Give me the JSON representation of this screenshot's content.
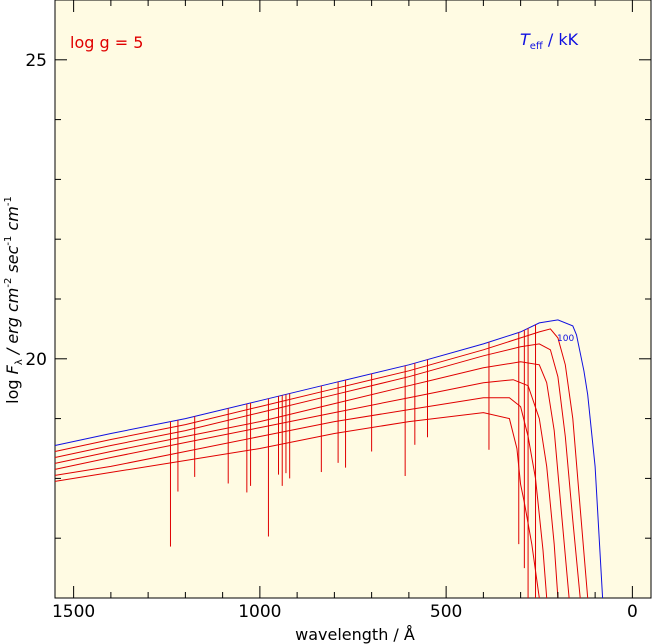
{
  "chart_data": {
    "type": "line",
    "title": "",
    "xlabel": "wavelength / Å",
    "ylabel_parts": [
      "log ",
      "F",
      "λ",
      " / erg cm",
      "-2",
      " sec",
      "-1",
      " cm",
      "-1"
    ],
    "xlim": [
      1550,
      -50
    ],
    "ylim": [
      16,
      26
    ],
    "x_ticks": [
      1500,
      1000,
      500,
      0
    ],
    "y_ticks": [
      20,
      25
    ],
    "grid": false,
    "annotations": {
      "gravity": "log g = 5",
      "teff_main": "T",
      "teff_sub": "eff",
      "teff_unit": " / kK",
      "curve_label": "100"
    },
    "series": [
      {
        "color": "#1010e0",
        "x": [
          1550,
          1400,
          1200,
          1000,
          800,
          600,
          400,
          300,
          250,
          200,
          160,
          150,
          140,
          130,
          120,
          100,
          80
        ],
        "y": [
          18.55,
          18.75,
          19.0,
          19.3,
          19.6,
          19.9,
          20.25,
          20.45,
          20.6,
          20.65,
          20.55,
          20.4,
          20.1,
          19.8,
          19.4,
          18.2,
          16.0
        ]
      },
      {
        "color": "#e00000",
        "x": [
          1550,
          1400,
          1200,
          1000,
          800,
          600,
          400,
          300,
          250,
          220,
          200,
          180,
          160,
          140,
          120
        ],
        "y": [
          18.45,
          18.65,
          18.9,
          19.2,
          19.5,
          19.8,
          20.15,
          20.35,
          20.45,
          20.5,
          20.35,
          19.9,
          19.0,
          17.5,
          16.0
        ]
      },
      {
        "color": "#e00000",
        "x": [
          1550,
          1400,
          1200,
          1000,
          800,
          600,
          400,
          300,
          250,
          220,
          200,
          180,
          160,
          140
        ],
        "y": [
          18.35,
          18.55,
          18.8,
          19.1,
          19.4,
          19.7,
          20.05,
          20.2,
          20.25,
          20.15,
          19.7,
          18.7,
          17.3,
          16.0
        ]
      },
      {
        "color": "#e00000",
        "x": [
          1550,
          1400,
          1200,
          1000,
          800,
          600,
          400,
          300,
          250,
          230,
          210,
          190,
          170
        ],
        "y": [
          18.25,
          18.45,
          18.7,
          18.95,
          19.25,
          19.55,
          19.85,
          19.95,
          19.9,
          19.6,
          18.8,
          17.4,
          16.0
        ]
      },
      {
        "color": "#e00000",
        "x": [
          1550,
          1400,
          1200,
          1000,
          800,
          600,
          400,
          320,
          280,
          250,
          230,
          210,
          200
        ],
        "y": [
          18.15,
          18.35,
          18.6,
          18.85,
          19.1,
          19.35,
          19.6,
          19.65,
          19.55,
          19.0,
          18.2,
          16.9,
          16.0
        ]
      },
      {
        "color": "#e00000",
        "x": [
          1550,
          1400,
          1200,
          1000,
          800,
          600,
          400,
          330,
          300,
          280,
          260,
          240,
          230
        ],
        "y": [
          18.05,
          18.2,
          18.45,
          18.7,
          18.95,
          19.15,
          19.35,
          19.35,
          19.2,
          18.7,
          18.0,
          16.8,
          16.0
        ]
      },
      {
        "color": "#e00000",
        "x": [
          1550,
          1400,
          1200,
          1000,
          800,
          600,
          400,
          330,
          310,
          300,
          290,
          270,
          250
        ],
        "y": [
          17.95,
          18.1,
          18.3,
          18.5,
          18.75,
          18.95,
          19.1,
          19.0,
          18.5,
          17.9,
          17.6,
          16.9,
          16.0
        ]
      }
    ],
    "absorption_lines": [
      {
        "x": 1240,
        "depth": 1.4
      },
      {
        "x": 1220,
        "depth": 0.5
      },
      {
        "x": 1175,
        "depth": 0.3
      },
      {
        "x": 1085,
        "depth": 0.5
      },
      {
        "x": 1035,
        "depth": 0.7
      },
      {
        "x": 1025,
        "depth": 0.6
      },
      {
        "x": 977,
        "depth": 1.5
      },
      {
        "x": 950,
        "depth": 0.5
      },
      {
        "x": 940,
        "depth": 0.7
      },
      {
        "x": 930,
        "depth": 0.5
      },
      {
        "x": 920,
        "depth": 0.6
      },
      {
        "x": 835,
        "depth": 0.6
      },
      {
        "x": 790,
        "depth": 0.5
      },
      {
        "x": 770,
        "depth": 0.6
      },
      {
        "x": 700,
        "depth": 0.4
      },
      {
        "x": 610,
        "depth": 0.9
      },
      {
        "x": 584,
        "depth": 0.4
      },
      {
        "x": 550,
        "depth": 0.3
      },
      {
        "x": 385,
        "depth": 0.6
      },
      {
        "x": 305,
        "depth": 1.3
      },
      {
        "x": 290,
        "depth": 1.1
      },
      {
        "x": 280,
        "depth": 1.4
      },
      {
        "x": 260,
        "depth": 1.6
      },
      {
        "x": 248,
        "depth": 1.5
      },
      {
        "x": 243,
        "depth": 1.6
      },
      {
        "x": 237,
        "depth": 1.5
      },
      {
        "x": 230,
        "depth": 1.2
      }
    ]
  }
}
